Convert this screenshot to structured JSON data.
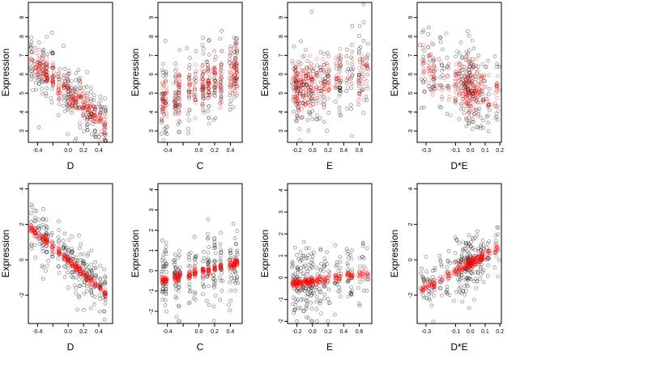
{
  "figure": {
    "title": ""
  },
  "colors": {
    "observed": "#000000",
    "fitted": "#ff0000"
  },
  "chart_data": [
    {
      "type": "scatter",
      "panel": "top-D",
      "xlabel": "D",
      "ylabel": "Expression",
      "xlim": [
        -0.52,
        0.58
      ],
      "ylim": [
        2.4,
        9.8
      ],
      "xticks": [
        -0.4,
        -0.2,
        0.0,
        0.2,
        0.4
      ],
      "xtick_labels": [
        "-0.4",
        "",
        "0.0",
        "0.2",
        "0.4"
      ],
      "yticks": [
        3,
        4,
        5,
        6,
        7,
        8,
        9
      ],
      "ytick_labels": [
        "3",
        "4",
        "5",
        "6",
        "7",
        "8",
        "9"
      ],
      "x_levels": [
        -0.48,
        -0.43,
        -0.38,
        -0.33,
        -0.28,
        -0.2,
        -0.12,
        -0.05,
        0.0,
        0.05,
        0.1,
        0.15,
        0.2,
        0.25,
        0.3,
        0.35,
        0.42,
        0.48
      ],
      "trend": {
        "type": "linear",
        "intercept": 5.05,
        "slope": -3.6
      },
      "noise_sd": 0.8,
      "fitted_sd": 0.4,
      "series": [
        {
          "name": "",
          "color": "#000000",
          "n": 260
        },
        {
          "name": "",
          "color": "#ff0000",
          "n": 240
        }
      ]
    },
    {
      "type": "scatter",
      "panel": "top-C",
      "xlabel": "C",
      "ylabel": "Expression",
      "xlim": [
        -0.52,
        0.55
      ],
      "ylim": [
        2.4,
        9.8
      ],
      "xticks": [
        -0.4,
        -0.2,
        0.0,
        0.2,
        0.4
      ],
      "xtick_labels": [
        "-0.4",
        "",
        "0.0",
        "0.2",
        "0.4"
      ],
      "yticks": [
        3,
        4,
        5,
        6,
        7,
        8,
        9
      ],
      "ytick_labels": [
        "3",
        "4",
        "5",
        "6",
        "7",
        "8",
        "9"
      ],
      "x_levels": [
        -0.46,
        -0.42,
        -0.3,
        -0.25,
        -0.12,
        -0.05,
        0.05,
        0.12,
        0.2,
        0.28,
        0.4,
        0.45,
        0.48
      ],
      "trend": {
        "type": "linear",
        "intercept": 5.4,
        "slope": 1.5
      },
      "noise_sd": 1.0,
      "fitted_sd": 0.7,
      "series": [
        {
          "name": "",
          "color": "#000000",
          "n": 240
        },
        {
          "name": "",
          "color": "#ff0000",
          "n": 220
        }
      ]
    },
    {
      "type": "scatter",
      "panel": "top-E",
      "xlabel": "E",
      "ylabel": "Expression",
      "xlim": [
        -0.32,
        0.76
      ],
      "ylim": [
        2.4,
        9.8
      ],
      "xticks": [
        -0.2,
        0.0,
        0.2,
        0.4,
        0.6
      ],
      "xtick_labels": [
        "-0.2",
        "0.0",
        "0.2",
        "0.4",
        "0.6"
      ],
      "yticks": [
        3,
        4,
        5,
        6,
        7,
        8,
        9
      ],
      "ytick_labels": [
        "3",
        "4",
        "5",
        "6",
        "7",
        "8",
        "9"
      ],
      "x_levels": [
        -0.25,
        -0.22,
        -0.2,
        -0.18,
        -0.15,
        -0.12,
        -0.08,
        -0.05,
        -0.02,
        0.0,
        0.05,
        0.1,
        0.15,
        0.2,
        0.3,
        0.35,
        0.45,
        0.5,
        0.6,
        0.65,
        0.7
      ],
      "trend": {
        "type": "linear",
        "intercept": 5.4,
        "slope": 1.1
      },
      "noise_sd": 1.0,
      "fitted_sd": 0.65,
      "series": [
        {
          "name": "",
          "color": "#000000",
          "n": 240
        },
        {
          "name": "",
          "color": "#ff0000",
          "n": 220
        }
      ]
    },
    {
      "type": "scatter",
      "panel": "top-DE",
      "xlabel": "D*E",
      "ylabel": "Expression",
      "xlim": [
        -0.36,
        0.21
      ],
      "ylim": [
        2.4,
        9.8
      ],
      "xticks": [
        -0.3,
        -0.1,
        0.0,
        0.1,
        0.2
      ],
      "xtick_labels": [
        "-0.3",
        "-0.1",
        "0.0",
        "0.1",
        "0.2"
      ],
      "yticks": [
        3,
        4,
        5,
        6,
        7,
        8,
        9
      ],
      "ytick_labels": [
        "3",
        "4",
        "5",
        "6",
        "7",
        "8",
        "9"
      ],
      "x_levels": [
        -0.32,
        -0.28,
        -0.25,
        -0.2,
        -0.15,
        -0.1,
        -0.07,
        -0.05,
        -0.03,
        -0.02,
        -0.01,
        0.0,
        0.01,
        0.02,
        0.04,
        0.06,
        0.08,
        0.12,
        0.18
      ],
      "trend": {
        "type": "linear",
        "intercept": 5.4,
        "slope": -3.0
      },
      "noise_sd": 1.1,
      "fitted_sd": 0.7,
      "series": [
        {
          "name": "",
          "color": "#000000",
          "n": 240
        },
        {
          "name": "",
          "color": "#ff0000",
          "n": 220
        }
      ]
    },
    {
      "type": "scatter",
      "panel": "bottom-D",
      "xlabel": "D",
      "ylabel": "Expression",
      "xlim": [
        -0.52,
        0.58
      ],
      "ylim": [
        -3.6,
        4.3
      ],
      "xticks": [
        -0.4,
        -0.2,
        0.0,
        0.2,
        0.4
      ],
      "xtick_labels": [
        "-0.4",
        "",
        "0.0",
        "0.2",
        "0.4"
      ],
      "yticks": [
        -2,
        0,
        2,
        4
      ],
      "ytick_labels": [
        "-2",
        "0",
        "2",
        "4"
      ],
      "x_levels": [
        -0.48,
        -0.43,
        -0.38,
        -0.33,
        -0.28,
        -0.2,
        -0.12,
        -0.05,
        0.0,
        0.05,
        0.1,
        0.15,
        0.2,
        0.25,
        0.3,
        0.35,
        0.42,
        0.48
      ],
      "trend": {
        "type": "linear",
        "intercept": -0.05,
        "slope": -3.8
      },
      "noise_sd": 0.75,
      "fitted_sd": 0.12,
      "series": [
        {
          "name": "",
          "color": "#000000",
          "n": 260
        },
        {
          "name": "",
          "color": "#ff0000",
          "n": 240
        }
      ]
    },
    {
      "type": "scatter",
      "panel": "bottom-C",
      "xlabel": "C",
      "ylabel": "Expression",
      "xlim": [
        -0.52,
        0.55
      ],
      "ylim": [
        -2.6,
        4.3
      ],
      "xticks": [
        -0.4,
        -0.2,
        0.0,
        0.2,
        0.4
      ],
      "xtick_labels": [
        "-0.4",
        "",
        "0.0",
        "0.2",
        "0.4"
      ],
      "yticks": [
        -2,
        -1,
        0,
        1,
        2,
        3,
        4
      ],
      "ytick_labels": [
        "-2",
        "-1",
        "0",
        "1",
        "2",
        "3",
        "4"
      ],
      "x_levels": [
        -0.46,
        -0.42,
        -0.3,
        -0.25,
        -0.12,
        -0.05,
        0.05,
        0.12,
        0.2,
        0.28,
        0.4,
        0.45,
        0.48
      ],
      "trend": {
        "type": "linear",
        "intercept": -0.05,
        "slope": 0.9
      },
      "noise_sd": 0.85,
      "fitted_sd": 0.1,
      "series": [
        {
          "name": "",
          "color": "#000000",
          "n": 250
        },
        {
          "name": "",
          "color": "#ff0000",
          "n": 230
        }
      ]
    },
    {
      "type": "scatter",
      "panel": "bottom-E",
      "xlabel": "E",
      "ylabel": "Expression",
      "xlim": [
        -0.32,
        0.76
      ],
      "ylim": [
        -2.1,
        4.3
      ],
      "xticks": [
        -0.2,
        0.0,
        0.2,
        0.4,
        0.6
      ],
      "xtick_labels": [
        "-0.2",
        "0.0",
        "0.2",
        "0.4",
        "0.6"
      ],
      "yticks": [
        -2,
        -1,
        0,
        1,
        2,
        3,
        4
      ],
      "ytick_labels": [
        "-2",
        "-1",
        "0",
        "1",
        "2",
        "3",
        "4"
      ],
      "x_levels": [
        -0.25,
        -0.22,
        -0.2,
        -0.18,
        -0.15,
        -0.12,
        -0.08,
        -0.05,
        -0.02,
        0.0,
        0.05,
        0.1,
        0.15,
        0.2,
        0.3,
        0.35,
        0.45,
        0.5,
        0.6,
        0.65,
        0.7
      ],
      "trend": {
        "type": "linear",
        "intercept": -0.15,
        "slope": 0.5
      },
      "noise_sd": 0.8,
      "fitted_sd": 0.1,
      "series": [
        {
          "name": "",
          "color": "#000000",
          "n": 250
        },
        {
          "name": "",
          "color": "#ff0000",
          "n": 230
        }
      ]
    },
    {
      "type": "scatter",
      "panel": "bottom-DE",
      "xlabel": "D*E",
      "ylabel": "Expression",
      "xlim": [
        -0.36,
        0.21
      ],
      "ylim": [
        -3.6,
        4.3
      ],
      "xticks": [
        -0.3,
        -0.1,
        0.0,
        0.1,
        0.2
      ],
      "xtick_labels": [
        "-0.3",
        "-0.1",
        "0.0",
        "0.1",
        "0.2"
      ],
      "yticks": [
        -2,
        0,
        2,
        4
      ],
      "ytick_labels": [
        "-2",
        "0",
        "2",
        "4"
      ],
      "x_levels": [
        -0.32,
        -0.28,
        -0.25,
        -0.2,
        -0.15,
        -0.1,
        -0.07,
        -0.05,
        -0.03,
        -0.02,
        -0.01,
        0.0,
        0.01,
        0.02,
        0.04,
        0.06,
        0.08,
        0.12,
        0.18
      ],
      "trend": {
        "type": "linear",
        "intercept": -0.2,
        "slope": 4.5
      },
      "noise_sd": 0.8,
      "fitted_sd": 0.15,
      "series": [
        {
          "name": "",
          "color": "#000000",
          "n": 250
        },
        {
          "name": "",
          "color": "#ff0000",
          "n": 230
        }
      ]
    }
  ]
}
